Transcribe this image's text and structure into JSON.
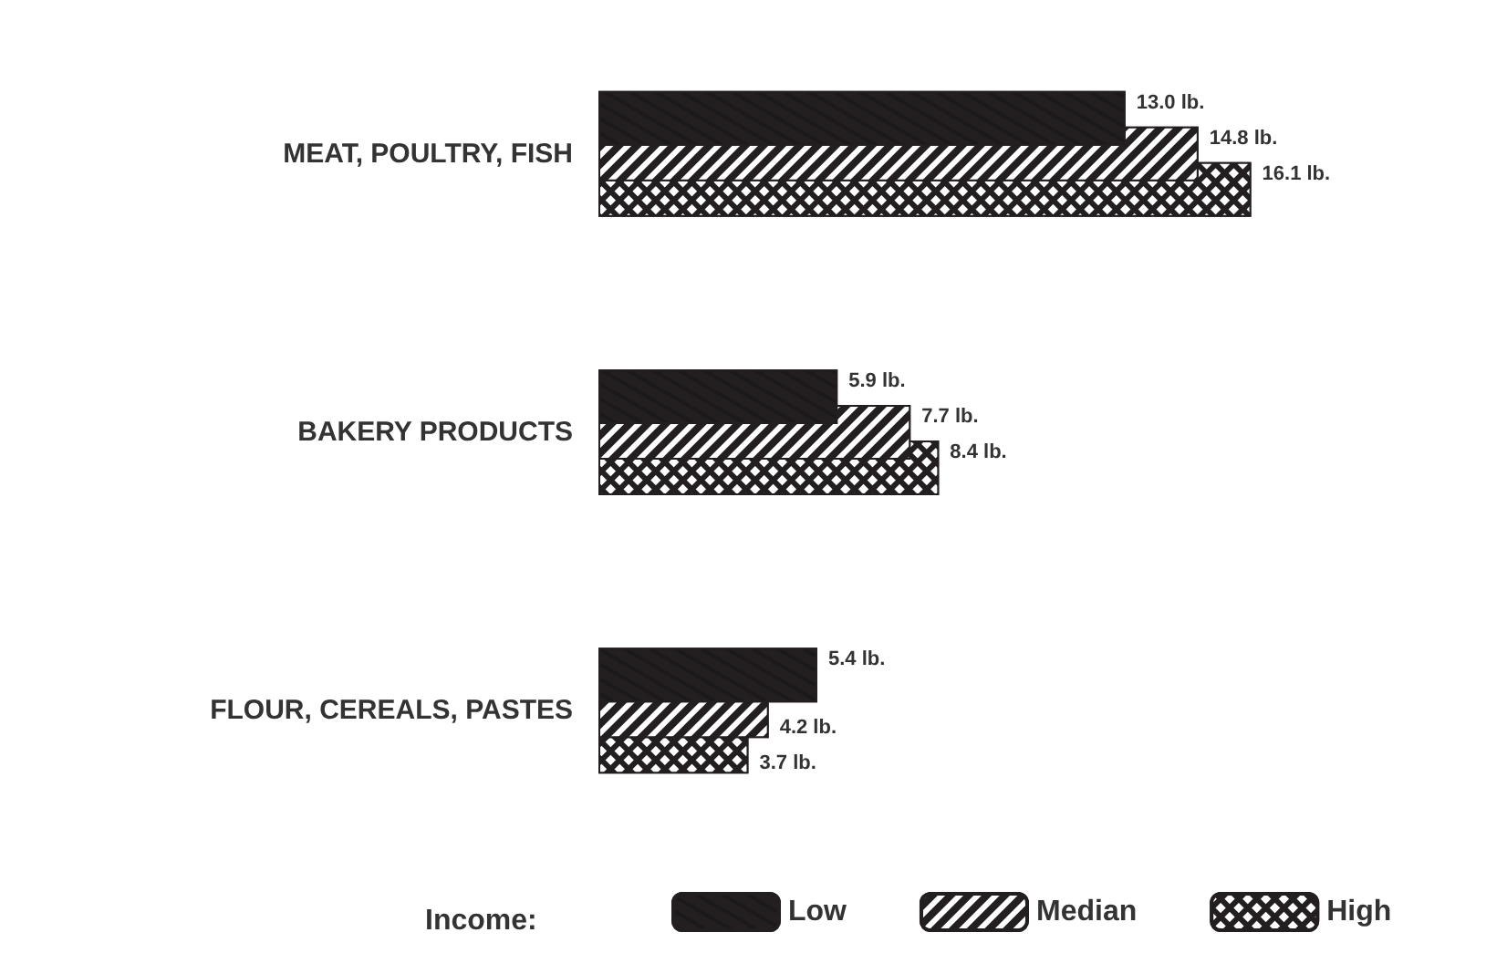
{
  "chart_data": {
    "type": "bar",
    "orientation": "horizontal",
    "categories": [
      "MEAT, POULTRY, FISH",
      "BAKERY PRODUCTS",
      "FLOUR, CEREALS, PASTES"
    ],
    "series": [
      {
        "name": "Low",
        "color": "#231f20",
        "values": [
          13.0,
          5.9,
          5.4
        ],
        "value_labels": [
          "13.0 lb.",
          "5.9 lb.",
          "5.4 lb."
        ]
      },
      {
        "name": "Median",
        "color": "#231f20",
        "values": [
          14.8,
          7.7,
          4.2
        ],
        "value_labels": [
          "14.8 lb.",
          "7.7 lb.",
          "4.2 lb."
        ]
      },
      {
        "name": "High",
        "color": "#231f20",
        "values": [
          16.1,
          8.4,
          3.7
        ],
        "value_labels": [
          "16.1 lb.",
          "8.4 lb.",
          "3.7 lb."
        ]
      }
    ],
    "legend": "bottom",
    "legend_title": "Income:"
  }
}
